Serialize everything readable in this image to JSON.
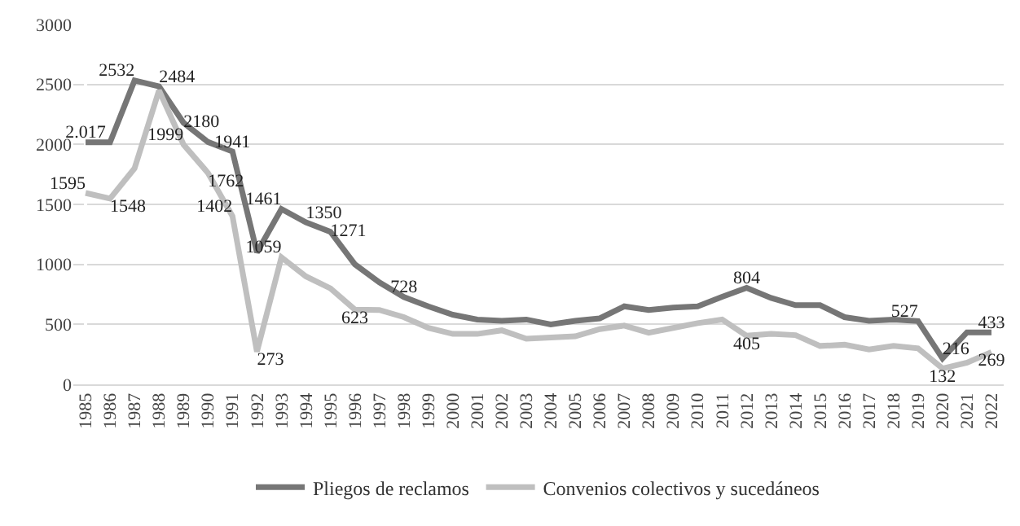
{
  "chart_data": {
    "type": "line",
    "categories": [
      "1985",
      "1986",
      "1987",
      "1988",
      "1989",
      "1990",
      "1991",
      "1992",
      "1993",
      "1994",
      "1995",
      "1996",
      "1997",
      "1998",
      "1999",
      "2000",
      "2001",
      "2002",
      "2003",
      "2004",
      "2005",
      "2006",
      "2007",
      "2008",
      "2009",
      "2010",
      "2011",
      "2012",
      "2013",
      "2014",
      "2015",
      "2016",
      "2017",
      "2018",
      "2019",
      "2020",
      "2021",
      "2022"
    ],
    "series": [
      {
        "name": "Pliegos de reclamos",
        "color": "#767676",
        "values": [
          2017,
          2017,
          2532,
          2484,
          2180,
          2020,
          1941,
          1100,
          1461,
          1350,
          1271,
          1000,
          850,
          728,
          650,
          580,
          540,
          530,
          540,
          500,
          530,
          550,
          650,
          620,
          640,
          650,
          730,
          804,
          720,
          660,
          660,
          560,
          530,
          540,
          527,
          216,
          433,
          433
        ],
        "value_labels": [
          "2.017",
          null,
          "2532",
          "2484",
          "2180",
          null,
          "1941",
          null,
          "1461",
          "1350",
          "1271",
          null,
          null,
          "728",
          null,
          null,
          null,
          null,
          null,
          null,
          null,
          null,
          null,
          null,
          null,
          null,
          null,
          "804",
          null,
          null,
          null,
          null,
          null,
          null,
          "527",
          "216",
          null,
          "433"
        ]
      },
      {
        "name": "Convenios colectivos y sucedáneos",
        "color": "#bfbfbf",
        "values": [
          1595,
          1548,
          1800,
          2450,
          1999,
          1762,
          1402,
          273,
          1059,
          900,
          800,
          623,
          620,
          560,
          470,
          420,
          420,
          450,
          380,
          390,
          400,
          460,
          490,
          430,
          470,
          510,
          540,
          405,
          420,
          410,
          320,
          330,
          290,
          320,
          300,
          132,
          180,
          269
        ],
        "value_labels": [
          "1595",
          "1548",
          null,
          null,
          "1999",
          "1762",
          "1402",
          "273",
          "1059",
          null,
          null,
          "623",
          null,
          null,
          null,
          null,
          null,
          null,
          null,
          null,
          null,
          null,
          null,
          null,
          null,
          null,
          null,
          "405",
          null,
          null,
          null,
          null,
          null,
          null,
          null,
          "132",
          null,
          "269"
        ]
      }
    ],
    "ylim": [
      0,
      3000
    ],
    "yticks": [
      0,
      500,
      1000,
      1500,
      2000,
      2500,
      3000
    ],
    "grid": "y",
    "legend": "bottom",
    "marker": "none",
    "line_style": "solid"
  }
}
